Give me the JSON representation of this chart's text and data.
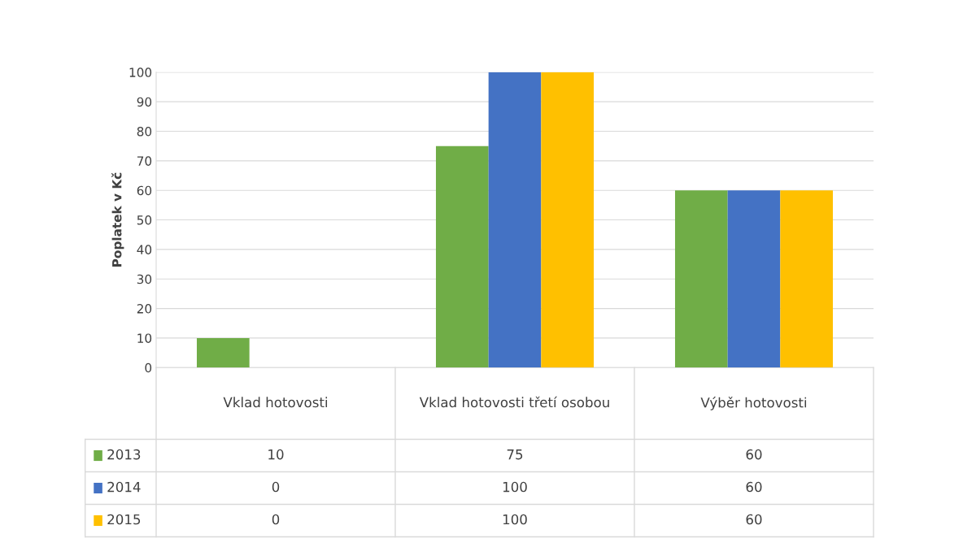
{
  "chart_data": {
    "type": "bar",
    "ylabel": "Poplatek v Kč",
    "categories": [
      "Vklad hotovosti",
      "Vklad hotovosti třetí osobou",
      "Výběr hotovosti"
    ],
    "series": [
      {
        "name": "2013",
        "color": "#70ad47",
        "values": [
          10,
          75,
          60
        ]
      },
      {
        "name": "2014",
        "color": "#4472c4",
        "values": [
          0,
          100,
          60
        ]
      },
      {
        "name": "2015",
        "color": "#ffc000",
        "values": [
          0,
          100,
          60
        ]
      }
    ],
    "ylim": [
      0,
      100
    ],
    "yticks": [
      0,
      10,
      20,
      30,
      40,
      50,
      60,
      70,
      80,
      90,
      100
    ],
    "grid": "y",
    "legend": "bottom",
    "data_labels": true
  }
}
